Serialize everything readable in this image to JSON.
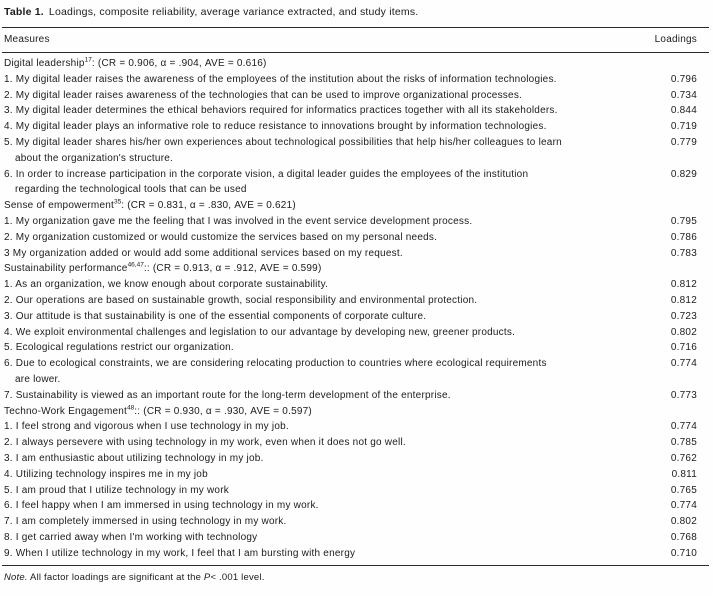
{
  "title": {
    "label": "Table 1.",
    "text": "Loadings, composite reliability, average variance extracted, and study items."
  },
  "columns": {
    "measures": "Measures",
    "loadings": "Loadings"
  },
  "sections": [
    {
      "name": "Digital leadership",
      "sup": "17",
      "suffix": ": (CR = 0.906, α = .904, AVE = 0.616)",
      "items": [
        {
          "lines": [
            "1. My digital leader raises the awareness of the employees of the institution about the risks of information technologies."
          ],
          "loading": "0.796"
        },
        {
          "lines": [
            "2. My digital leader raises awareness of the technologies that can be used to improve organizational processes."
          ],
          "loading": "0.734"
        },
        {
          "lines": [
            "3. My digital leader determines the ethical behaviors required for informatics practices together with all its stakeholders."
          ],
          "loading": "0.844"
        },
        {
          "lines": [
            "4. My digital leader plays an informative role to reduce resistance to innovations brought by information technologies."
          ],
          "loading": "0.719"
        },
        {
          "lines": [
            "5. My digital leader shares his/her own experiences about technological possibilities that help his/her colleagues to learn",
            "about the organization's structure."
          ],
          "loading": "0.779"
        },
        {
          "lines": [
            "6. In order to increase participation in the corporate vision, a digital leader guides the employees of the institution",
            "regarding the technological tools that can be used"
          ],
          "loading": "0.829"
        }
      ]
    },
    {
      "name": "Sense of empowerment",
      "sup": "35",
      "suffix": ": (CR = 0.831, α = .830, AVE = 0.621)",
      "items": [
        {
          "lines": [
            "1. My organization gave me the feeling that I was involved in the event service development process."
          ],
          "loading": "0.795"
        },
        {
          "lines": [
            "2. My organization customized or would customize the services based on my personal needs."
          ],
          "loading": "0.786"
        },
        {
          "lines": [
            "3 My organization added or would add some additional services based on my request."
          ],
          "loading": "0.783"
        }
      ]
    },
    {
      "name": "Sustainability performance",
      "sup": "46,47",
      "suffix": ":: (CR = 0.913, α = .912, AVE = 0.599)",
      "items": [
        {
          "lines": [
            "1. As an organization, we know enough about corporate sustainability."
          ],
          "loading": "0.812"
        },
        {
          "lines": [
            "2. Our operations are based on sustainable growth, social responsibility and environmental protection."
          ],
          "loading": "0.812"
        },
        {
          "lines": [
            "3. Our attitude is that sustainability is one of the essential components of corporate culture."
          ],
          "loading": "0.723"
        },
        {
          "lines": [
            "4. We exploit environmental challenges and legislation to our advantage by developing new, greener products."
          ],
          "loading": "0.802"
        },
        {
          "lines": [
            "5. Ecological regulations restrict our organization."
          ],
          "loading": "0.716"
        },
        {
          "lines": [
            "6. Due to ecological constraints, we are considering relocating production to countries where ecological requirements",
            "are lower."
          ],
          "loading": "0.774"
        },
        {
          "lines": [
            "7. Sustainability is viewed as an important route for the long-term development of the enterprise."
          ],
          "loading": "0.773"
        }
      ]
    },
    {
      "name": "Techno-Work Engagement",
      "sup": "48",
      "suffix": ":: (CR = 0.930, α = .930, AVE = 0.597)",
      "items": [
        {
          "lines": [
            "1. I feel strong and vigorous when I use technology in my job."
          ],
          "loading": "0.774"
        },
        {
          "lines": [
            "2. I always persevere with using technology in my work, even when it does not go well."
          ],
          "loading": "0.785"
        },
        {
          "lines": [
            "3. I am enthusiastic about utilizing technology in my job."
          ],
          "loading": "0.762"
        },
        {
          "lines": [
            "4. Utilizing technology inspires me in my job"
          ],
          "loading": "0.811"
        },
        {
          "lines": [
            "5. I am proud that I utilize technology in my work"
          ],
          "loading": "0.765"
        },
        {
          "lines": [
            "6. I feel happy when I am immersed in using technology in my work."
          ],
          "loading": "0.774"
        },
        {
          "lines": [
            "7. I am completely immersed in using technology in my work."
          ],
          "loading": "0.802"
        },
        {
          "lines": [
            "8. I get carried away when I'm working with technology"
          ],
          "loading": "0.768"
        },
        {
          "lines": [
            "9. When I utilize technology in my work, I feel that I am bursting with energy"
          ],
          "loading": "0.710"
        }
      ]
    }
  ],
  "note": {
    "label": "Note.",
    "before": " All factor loadings are significant at the ",
    "p": "P",
    "after": "< .001 level."
  }
}
